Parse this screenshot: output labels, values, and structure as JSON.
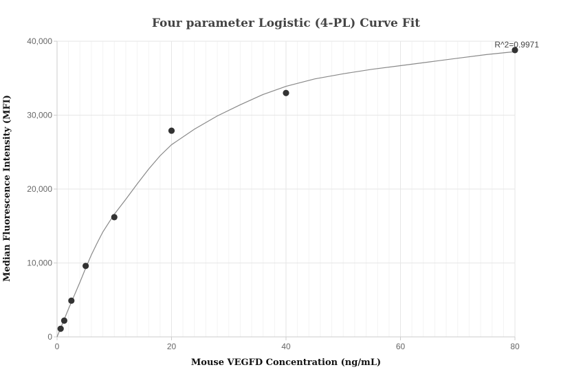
{
  "chart_data": {
    "type": "scatter",
    "title": "Four parameter Logistic (4-PL) Curve Fit",
    "xlabel": "Mouse VEGFD Concentration (ng/mL)",
    "ylabel": "Median Fluorescence Intensity (MFI)",
    "xlim": [
      0,
      80
    ],
    "ylim": [
      0,
      40000
    ],
    "x_ticks": [
      0,
      20,
      40,
      60,
      80
    ],
    "x_tick_labels": [
      "0",
      "20",
      "40",
      "60",
      "80"
    ],
    "y_ticks": [
      0,
      10000,
      20000,
      30000,
      40000
    ],
    "y_tick_labels": [
      "0",
      "10,000",
      "20,000",
      "30,000",
      "40,000"
    ],
    "grid": true,
    "annotation": "R^2=0.9971",
    "points": [
      {
        "x": 0.625,
        "y": 1100
      },
      {
        "x": 1.25,
        "y": 2200
      },
      {
        "x": 2.5,
        "y": 4900
      },
      {
        "x": 5,
        "y": 9600
      },
      {
        "x": 10,
        "y": 16200
      },
      {
        "x": 20,
        "y": 27900
      },
      {
        "x": 40,
        "y": 33000
      },
      {
        "x": 80,
        "y": 38800
      }
    ],
    "fit_curve": [
      [
        0,
        0
      ],
      [
        1,
        1900
      ],
      [
        2,
        3800
      ],
      [
        3,
        5600
      ],
      [
        4,
        7400
      ],
      [
        5,
        9300
      ],
      [
        6,
        11100
      ],
      [
        7,
        12700
      ],
      [
        8,
        14200
      ],
      [
        9,
        15400
      ],
      [
        10,
        16600
      ],
      [
        12,
        18600
      ],
      [
        14,
        20700
      ],
      [
        16,
        22700
      ],
      [
        18,
        24500
      ],
      [
        20,
        26000
      ],
      [
        24,
        28100
      ],
      [
        28,
        29900
      ],
      [
        32,
        31400
      ],
      [
        36,
        32800
      ],
      [
        40,
        33900
      ],
      [
        45,
        34900
      ],
      [
        50,
        35600
      ],
      [
        55,
        36200
      ],
      [
        60,
        36700
      ],
      [
        65,
        37200
      ],
      [
        70,
        37700
      ],
      [
        75,
        38200
      ],
      [
        80,
        38600
      ]
    ],
    "colors": {
      "points": "#333333",
      "curve": "#888888",
      "grid": "#e6e6e6",
      "axis": "#cccccc"
    }
  }
}
